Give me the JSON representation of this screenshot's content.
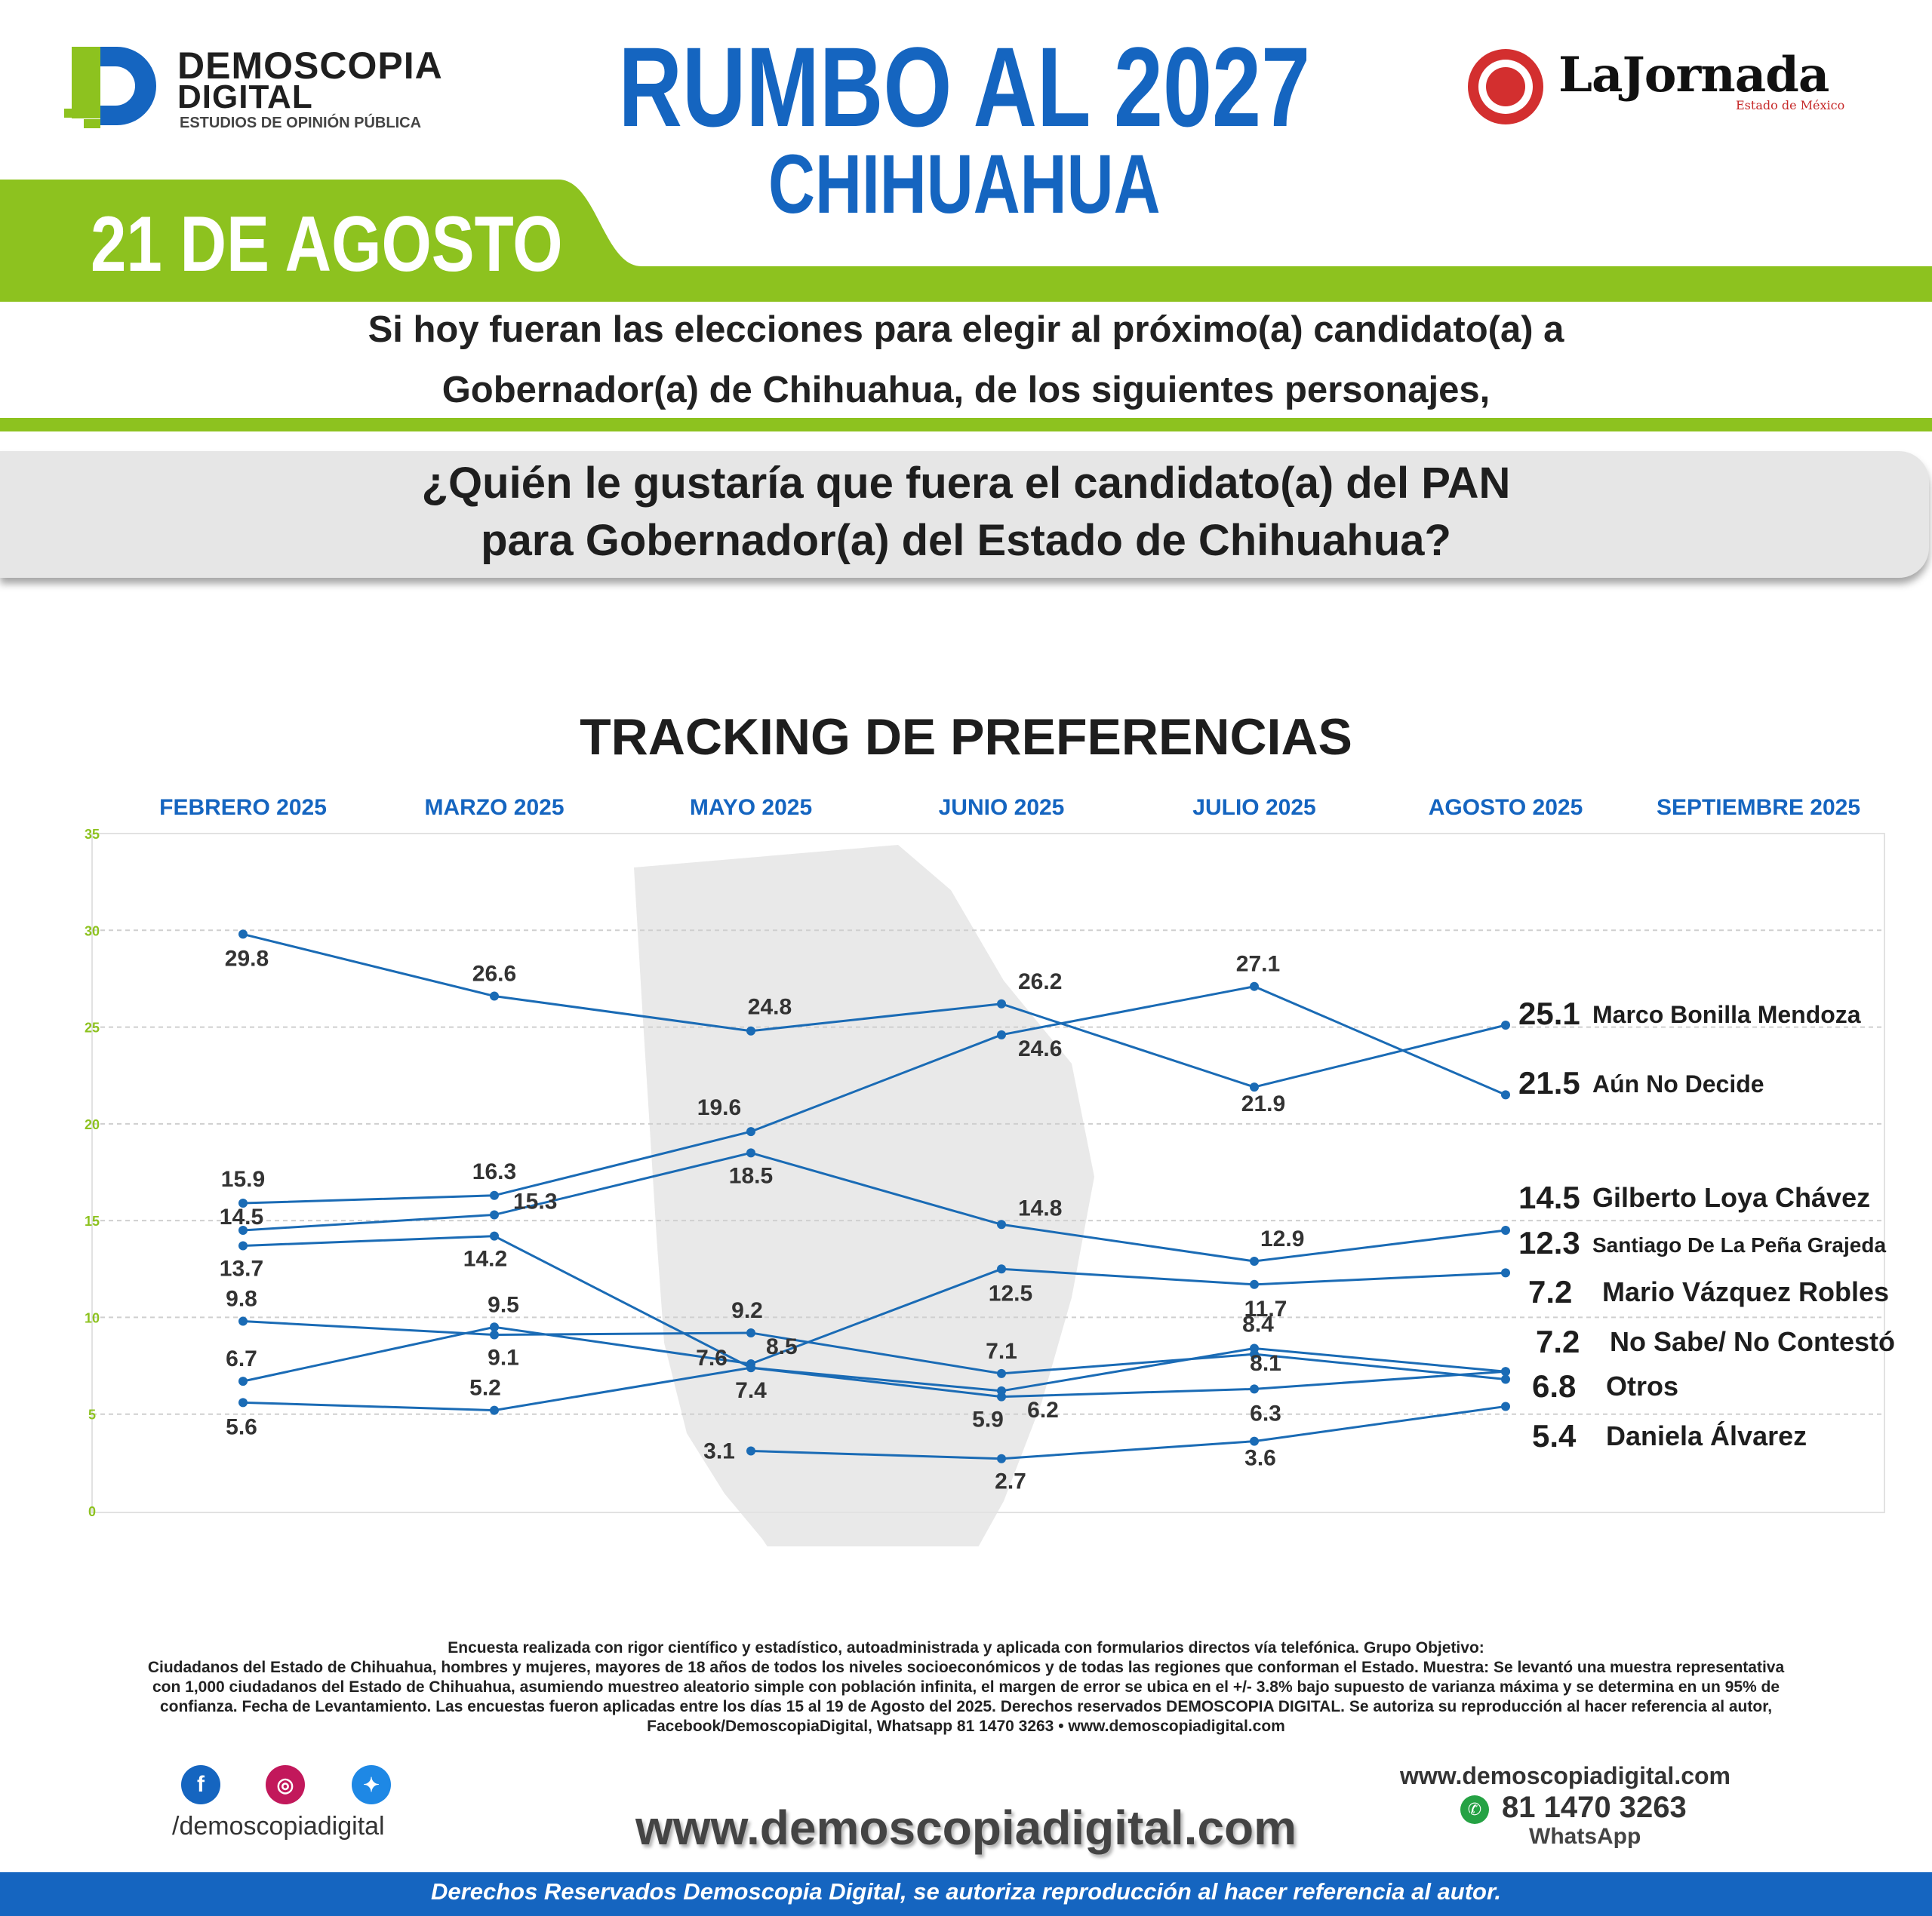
{
  "header": {
    "logo": {
      "line1": "DEMOSCOPIA",
      "line2": "DIGITAL",
      "line3": "ESTUDIOS DE OPINIÓN PÚBLICA"
    },
    "title": "RUMBO AL 2027",
    "subtitle": "CHIHUAHUA",
    "partner": {
      "name": "LaJornada",
      "region": "Estado de México"
    }
  },
  "date": "21 DE AGOSTO",
  "question_intro": {
    "line1": "Si hoy fueran las elecciones para elegir al próximo(a) candidato(a) a",
    "line2": "Gobernador(a) de Chihuahua, de los siguientes personajes,"
  },
  "question": {
    "line1": "¿Quién le gustaría que fuera el candidato(a) del PAN",
    "line2": "para Gobernador(a) del Estado de Chihuahua?"
  },
  "colors": {
    "accent_green": "#8dc21f",
    "brand_blue": "#1565c0",
    "line_blue": "#1a6bb5"
  },
  "chart_data": {
    "type": "line",
    "title": "TRACKING DE PREFERENCIAS",
    "categories": [
      "FEBRERO 2025",
      "MARZO 2025",
      "MAYO 2025",
      "JUNIO 2025",
      "JULIO 2025",
      "AGOSTO 2025",
      "SEPTIEMBRE 2025"
    ],
    "ylim": [
      0,
      35
    ],
    "yticks": [
      0,
      5,
      10,
      15,
      20,
      25,
      30,
      35
    ],
    "grid": true,
    "series": [
      {
        "name": "Marco Bonilla Mendoza",
        "values": [
          29.8,
          26.6,
          24.8,
          26.2,
          21.9,
          25.1,
          null
        ]
      },
      {
        "name": "Aún No Decide",
        "values": [
          15.9,
          16.3,
          19.6,
          24.6,
          27.1,
          21.5,
          null
        ]
      },
      {
        "name": "Gilberto Loya Chávez",
        "values": [
          14.5,
          15.3,
          18.5,
          14.8,
          12.9,
          14.5,
          null
        ]
      },
      {
        "name": "Santiago De La Peña Grajeda",
        "values": [
          6.7,
          9.5,
          7.6,
          12.5,
          11.7,
          12.3,
          null
        ]
      },
      {
        "name": "Mario Vázquez Robles",
        "values": [
          13.7,
          14.2,
          7.4,
          5.9,
          6.3,
          7.2,
          null
        ]
      },
      {
        "name": "No Sabe/ No Contestó",
        "values": [
          5.6,
          5.2,
          7.4,
          6.2,
          8.4,
          7.2,
          null
        ]
      },
      {
        "name": "Otros",
        "values": [
          9.8,
          9.1,
          9.2,
          7.1,
          8.1,
          6.8,
          null
        ]
      },
      {
        "name": "Daniela Álvarez",
        "values": [
          null,
          null,
          3.1,
          2.7,
          3.6,
          5.4,
          null
        ]
      }
    ],
    "point_labels": [
      {
        "text": "29.8"
      },
      {
        "text": "26.6"
      },
      {
        "text": "24.8"
      },
      {
        "text": "26.2"
      },
      {
        "text": "21.9"
      },
      {
        "text": "15.9"
      },
      {
        "text": "16.3"
      },
      {
        "text": "19.6"
      },
      {
        "text": "24.6"
      },
      {
        "text": "27.1"
      },
      {
        "text": "14.5"
      },
      {
        "text": "15.3"
      },
      {
        "text": "18.5"
      },
      {
        "text": "14.8"
      },
      {
        "text": "12.9"
      },
      {
        "text": "6.7"
      },
      {
        "text": "9.5"
      },
      {
        "text": "7.6"
      },
      {
        "text": "12.5"
      },
      {
        "text": "11.7"
      },
      {
        "text": "13.7"
      },
      {
        "text": "14.2"
      },
      {
        "text": "7.4"
      },
      {
        "text": "5.9"
      },
      {
        "text": "6.3"
      },
      {
        "text": "5.6"
      },
      {
        "text": "5.2"
      },
      {
        "text": "6.2"
      },
      {
        "text": "8.4"
      },
      {
        "text": "9.8"
      },
      {
        "text": "9.1"
      },
      {
        "text": "9.2"
      },
      {
        "text": "8.5"
      },
      {
        "text": "7.1"
      },
      {
        "text": "8.1"
      },
      {
        "text": "3.1"
      },
      {
        "text": "2.7"
      },
      {
        "text": "3.6"
      }
    ],
    "end_labels": [
      {
        "value": "25.1",
        "name": "Marco Bonilla Mendoza"
      },
      {
        "value": "21.5",
        "name": "Aún No Decide"
      },
      {
        "value": "14.5",
        "name": "Gilberto Loya Chávez"
      },
      {
        "value": "12.3",
        "name": "Santiago De La Peña Grajeda"
      },
      {
        "value": "7.2",
        "name": "Mario Vázquez Robles"
      },
      {
        "value": "7.2",
        "name": "No Sabe/ No Contestó"
      },
      {
        "value": "6.8",
        "name": "Otros"
      },
      {
        "value": "5.4",
        "name": "Daniela Álvarez"
      }
    ]
  },
  "footer": {
    "methodology": [
      "Encuesta realizada con rigor científico y estadístico, autoadministrada y aplicada con formularios directos vía telefónica. Grupo Objetivo:",
      "Ciudadanos del Estado de Chihuahua, hombres y mujeres, mayores de 18 años de todos los niveles socioeconómicos y de todas las regiones que conforman el Estado. Muestra: Se levantó una muestra representativa",
      "con 1,000 ciudadanos del Estado de Chihuahua, asumiendo muestreo aleatorio simple con población infinita, el margen de error se ubica en el +/- 3.8% bajo supuesto de varianza máxima y se determina en un 95% de",
      "confianza. Fecha de Levantamiento. Las encuestas fueron aplicadas entre los días 15 al 19 de Agosto del 2025. Derechos reservados DEMOSCOPIA DIGITAL. Se autoriza su reproducción al hacer referencia al autor,",
      "Facebook/DemoscopiaDigital, Whatsapp 81 1470 3263 • www.demoscopiadigital.com"
    ],
    "social_handle": "/demoscopiadigital",
    "website_big": "www.demoscopiadigital.com",
    "website_small": "www.demoscopiadigital.com",
    "phone": "81 1470 3263",
    "whatsapp_label": "WhatsApp",
    "rights": "Derechos Reservados Demoscopia Digital, se autoriza reproducción al hacer referencia al autor."
  }
}
